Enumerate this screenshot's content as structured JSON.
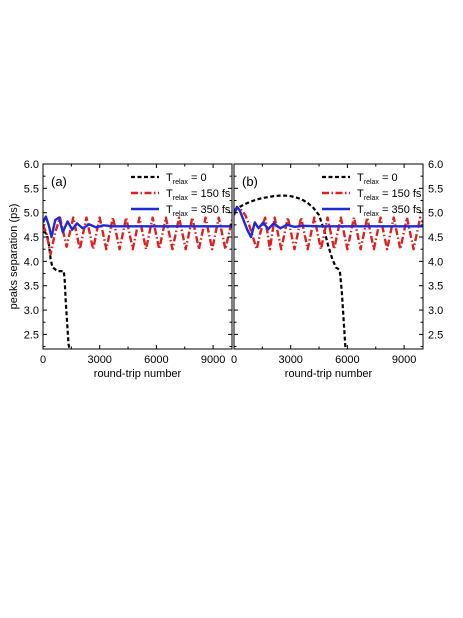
{
  "chart_data": [
    {
      "type": "line",
      "panel_label": "(a)",
      "xlabel": "round-trip number",
      "ylabel": "peaks separation (ps)",
      "xlim": [
        0,
        10000
      ],
      "ylim": [
        2.2,
        6.0
      ],
      "xticks": [
        "0",
        "3000",
        "6000",
        "9000"
      ],
      "yticks": [
        "2.5",
        "3.0",
        "3.5",
        "4.0",
        "4.5",
        "5.0",
        "5.5",
        "6.0"
      ],
      "y_tick_side": "left",
      "grid": false,
      "legend_position": "top-right",
      "series": [
        {
          "name": "T_relax = 0",
          "color": "#000000",
          "style": "dashed",
          "x": [
            0,
            100,
            200,
            300,
            400,
            500,
            600,
            700,
            800,
            900,
            1000,
            1100,
            1150,
            1200,
            1250,
            1300,
            1350,
            1400
          ],
          "y": [
            4.6,
            4.6,
            4.55,
            4.4,
            4.05,
            3.88,
            3.85,
            3.82,
            3.8,
            3.8,
            3.8,
            3.8,
            3.6,
            3.2,
            2.9,
            2.6,
            2.3,
            2.2
          ]
        },
        {
          "name": "T_relax = 150 fs",
          "color": "#e0201c",
          "style": "dash-dot",
          "x": [
            0,
            200,
            400,
            650,
            900,
            1250,
            1600,
            1950,
            2300,
            2650,
            3000,
            3350,
            3700,
            4050,
            4400,
            4750,
            5100,
            5450,
            5800,
            6150,
            6500,
            6850,
            7200,
            7550,
            7900,
            8250,
            8600,
            8950,
            9300,
            9650,
            10000
          ],
          "y": [
            4.75,
            4.55,
            4.15,
            4.6,
            4.9,
            4.3,
            4.9,
            4.25,
            4.9,
            4.25,
            4.9,
            4.25,
            4.9,
            4.25,
            4.9,
            4.25,
            4.9,
            4.25,
            4.9,
            4.25,
            4.9,
            4.25,
            4.9,
            4.25,
            4.9,
            4.25,
            4.9,
            4.25,
            4.9,
            4.25,
            4.85
          ]
        },
        {
          "name": "T_relax = 350 fs",
          "color": "#1f2ad6",
          "style": "solid",
          "x": [
            0,
            150,
            300,
            450,
            650,
            850,
            1050,
            1300,
            1550,
            1800,
            2100,
            2450,
            2800,
            3200,
            3700,
            4500,
            6000,
            8000,
            10000
          ],
          "y": [
            4.8,
            4.92,
            4.75,
            4.5,
            4.85,
            4.9,
            4.6,
            4.82,
            4.65,
            4.78,
            4.68,
            4.76,
            4.7,
            4.74,
            4.72,
            4.72,
            4.72,
            4.72,
            4.72
          ]
        }
      ]
    },
    {
      "type": "line",
      "panel_label": "(b)",
      "xlabel": "round-trip number",
      "ylabel": "",
      "xlim": [
        0,
        10000
      ],
      "ylim": [
        2.2,
        6.0
      ],
      "xticks": [
        "0",
        "3000",
        "6000",
        "9000"
      ],
      "yticks": [
        "2.5",
        "3.0",
        "3.5",
        "4.0",
        "4.5",
        "5.0",
        "5.5",
        "6.0"
      ],
      "y_tick_side": "right",
      "grid": false,
      "legend_position": "top-right",
      "series": [
        {
          "name": "T_relax = 0",
          "color": "#000000",
          "style": "dashed",
          "x": [
            0,
            300,
            600,
            900,
            1200,
            1500,
            1800,
            2100,
            2400,
            2700,
            3000,
            3300,
            3600,
            3900,
            4200,
            4500,
            4800,
            5000,
            5200,
            5400,
            5500,
            5600,
            5700,
            5800,
            5900
          ],
          "y": [
            5.05,
            5.12,
            5.18,
            5.23,
            5.27,
            5.3,
            5.32,
            5.34,
            5.35,
            5.35,
            5.34,
            5.31,
            5.27,
            5.2,
            5.1,
            4.95,
            4.6,
            4.3,
            4.05,
            3.87,
            3.85,
            3.8,
            3.4,
            2.8,
            2.2
          ]
        },
        {
          "name": "T_relax = 150 fs",
          "color": "#e0201c",
          "style": "dash-dot",
          "x": [
            0,
            200,
            400,
            600,
            800,
            1000,
            1200,
            1400,
            1650,
            1900,
            2150,
            2500,
            2850,
            3200,
            3550,
            3900,
            4250,
            4600,
            4950,
            5300,
            5650,
            6000,
            6350,
            6700,
            7050,
            7400,
            7750,
            8100,
            8450,
            8800,
            9150,
            9500,
            9850,
            10000
          ],
          "y": [
            5.0,
            5.1,
            5.05,
            4.95,
            4.75,
            4.5,
            4.25,
            4.6,
            4.9,
            4.25,
            4.9,
            4.25,
            4.9,
            4.25,
            4.9,
            4.25,
            4.9,
            4.25,
            4.9,
            4.25,
            4.9,
            4.25,
            4.9,
            4.25,
            4.9,
            4.25,
            4.9,
            4.25,
            4.9,
            4.25,
            4.9,
            4.25,
            4.9,
            4.8
          ]
        },
        {
          "name": "T_relax = 350 fs",
          "color": "#1f2ad6",
          "style": "solid",
          "x": [
            0,
            150,
            300,
            500,
            700,
            900,
            1100,
            1300,
            1550,
            1800,
            2100,
            2450,
            2800,
            3200,
            3700,
            4500,
            6000,
            8000,
            10000
          ],
          "y": [
            4.95,
            5.12,
            5.05,
            4.85,
            4.65,
            4.5,
            4.8,
            4.68,
            4.8,
            4.66,
            4.78,
            4.68,
            4.75,
            4.71,
            4.73,
            4.72,
            4.72,
            4.72,
            4.72
          ]
        }
      ]
    }
  ]
}
